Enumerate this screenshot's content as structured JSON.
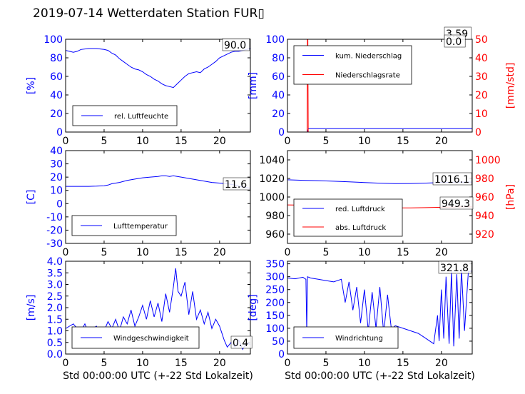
{
  "page": {
    "title": "2019-07-14 Wetterdaten Station FUR▯"
  },
  "chart_data": [
    {
      "id": "humidity",
      "type": "line",
      "xlabel": "",
      "ylabel": "[%]",
      "xlim": [
        0,
        24
      ],
      "ylim": [
        0,
        100
      ],
      "xticks": [
        0,
        5,
        10,
        15,
        20
      ],
      "yticks": [
        0,
        20,
        40,
        60,
        80,
        100
      ],
      "last_value_label": "90.0",
      "legend": [
        "rel. Luftfeuchte"
      ],
      "series": [
        {
          "name": "rel. Luftfeuchte",
          "color": "#0000ff",
          "x": [
            0,
            0.5,
            1,
            1.5,
            2,
            3,
            4,
            5,
            5.5,
            6,
            6.5,
            7,
            7.5,
            8,
            8.5,
            9,
            9.5,
            10,
            10.5,
            11,
            11.5,
            12,
            12.5,
            13,
            13.5,
            14,
            14.5,
            15,
            15.5,
            16,
            16.5,
            17,
            17.5,
            18,
            18.5,
            19,
            19.5,
            20,
            20.5,
            21,
            21.5,
            22,
            22.5,
            23,
            23.5,
            24
          ],
          "y": [
            88,
            87,
            86,
            87,
            89,
            90,
            90,
            89,
            88,
            85,
            83,
            79,
            76,
            73,
            70,
            68,
            67,
            65,
            62,
            60,
            57,
            55,
            52,
            50,
            49,
            48,
            52,
            56,
            60,
            63,
            64,
            65,
            64,
            68,
            70,
            73,
            76,
            80,
            82,
            84,
            86,
            87,
            87,
            88,
            89,
            90
          ]
        }
      ]
    },
    {
      "id": "precipitation",
      "type": "line",
      "xlabel": "",
      "ylabel": "[mm]",
      "ylabel_right": "[mm/std]",
      "xlim": [
        0,
        24
      ],
      "ylim": [
        0,
        100
      ],
      "ylim_right": [
        0,
        50
      ],
      "xticks": [
        0,
        5,
        10,
        15,
        20
      ],
      "yticks": [
        0,
        20,
        40,
        60,
        80,
        100
      ],
      "yticks_right": [
        0,
        10,
        20,
        30,
        40,
        50
      ],
      "last_value_labels": [
        "3.59",
        "0.0"
      ],
      "legend": [
        "kum. Niederschlag",
        "Niederschlagsrate"
      ],
      "series": [
        {
          "name": "kum. Niederschlag",
          "color": "#0000ff",
          "axis": "left",
          "x": [
            0,
            2.6,
            2.7,
            2.8,
            24
          ],
          "y": [
            0,
            0,
            3.4,
            3.59,
            3.59
          ]
        },
        {
          "name": "Niederschlagsrate",
          "color": "#ff0000",
          "axis": "right",
          "x": [
            0,
            2.55,
            2.6,
            2.65,
            2.7,
            24
          ],
          "y": [
            0,
            0,
            60,
            50,
            0,
            0
          ]
        }
      ]
    },
    {
      "id": "temperature",
      "type": "line",
      "xlabel": "",
      "ylabel": "[C]",
      "xlim": [
        0,
        24
      ],
      "ylim": [
        -30,
        40
      ],
      "xticks": [
        0,
        5,
        10,
        15,
        20
      ],
      "yticks": [
        -30,
        -20,
        -10,
        0,
        10,
        20,
        30,
        40
      ],
      "last_value_label": "11.6",
      "legend": [
        "Lufttemperatur"
      ],
      "series": [
        {
          "name": "Lufttemperatur",
          "color": "#0000ff",
          "x": [
            0,
            1,
            2,
            3,
            4,
            5,
            5.5,
            6,
            7,
            8,
            9,
            10,
            11,
            12,
            12.5,
            13,
            13.5,
            14,
            14.5,
            15,
            16,
            17,
            18,
            19,
            20,
            21,
            22,
            23,
            24
          ],
          "y": [
            13,
            13,
            13,
            13,
            13.2,
            13.5,
            14,
            15,
            16,
            17.5,
            18.5,
            19.5,
            20,
            20.5,
            21,
            21,
            20.5,
            21,
            20.5,
            20,
            19,
            18,
            17,
            16,
            15.5,
            15,
            14,
            12.5,
            11.6
          ]
        }
      ]
    },
    {
      "id": "pressure",
      "type": "line",
      "xlabel": "",
      "ylabel": "",
      "ylabel_right": "[hPa]",
      "xlim": [
        0,
        24
      ],
      "ylim": [
        950,
        1050
      ],
      "ylim_right": [
        910,
        1010
      ],
      "xticks": [
        0,
        5,
        10,
        15,
        20
      ],
      "yticks": [
        960,
        980,
        1000,
        1020,
        1040
      ],
      "yticks_right": [
        920,
        940,
        960,
        980,
        1000
      ],
      "last_value_labels": [
        "1016.1",
        "949.3"
      ],
      "legend": [
        "red. Luftdruck",
        "abs. Luftdruck"
      ],
      "series": [
        {
          "name": "red. Luftdruck",
          "color": "#0000ff",
          "axis": "left",
          "x": [
            0,
            2,
            4,
            6,
            8,
            10,
            12,
            14,
            16,
            18,
            20,
            22,
            24
          ],
          "y": [
            1018.5,
            1018,
            1017.6,
            1017,
            1016.4,
            1015.6,
            1014.9,
            1014.4,
            1014.5,
            1015,
            1015.6,
            1015.9,
            1016.1
          ]
        },
        {
          "name": "abs. Luftdruck",
          "color": "#ff0000",
          "axis": "right",
          "x": [
            0,
            2,
            4,
            6,
            8,
            10,
            12,
            14,
            16,
            18,
            20,
            22,
            24
          ],
          "y": [
            951.5,
            951.2,
            951,
            950.6,
            950.1,
            949.3,
            948.8,
            948.3,
            948.2,
            948.5,
            948.9,
            949.2,
            949.3
          ]
        }
      ]
    },
    {
      "id": "wind_speed",
      "type": "line",
      "xlabel": "Std 00:00:00 UTC (+-22 Std Lokalzeit)",
      "ylabel": "[m/s]",
      "xlim": [
        0,
        24
      ],
      "ylim": [
        0,
        4
      ],
      "xticks": [
        0,
        5,
        10,
        15,
        20
      ],
      "yticks": [
        0.0,
        0.5,
        1.0,
        1.5,
        2.0,
        2.5,
        3.0,
        3.5,
        4.0
      ],
      "last_value_label": "0.4",
      "legend": [
        "Windgeschwindigkeit"
      ],
      "series": [
        {
          "name": "Windgeschwindigkeit",
          "color": "#0000ff",
          "x": [
            0,
            0.5,
            1,
            1.5,
            2,
            2.5,
            3,
            3.5,
            4,
            4.5,
            5,
            5.5,
            6,
            6.5,
            7,
            7.5,
            8,
            8.5,
            9,
            9.5,
            10,
            10.5,
            11,
            11.5,
            12,
            12.5,
            13,
            13.5,
            14,
            14.3,
            14.6,
            15,
            15.5,
            16,
            16.5,
            17,
            17.5,
            18,
            18.5,
            19,
            19.5,
            20,
            20.3,
            20.6,
            21,
            21.5,
            22,
            22.5,
            23,
            23.5,
            24
          ],
          "y": [
            1.1,
            1.2,
            1.3,
            1.1,
            1.0,
            1.3,
            0.9,
            1.1,
            1.2,
            0.9,
            1.0,
            1.4,
            1.1,
            1.5,
            1.0,
            1.6,
            1.3,
            1.9,
            1.2,
            1.6,
            2.1,
            1.5,
            2.3,
            1.6,
            2.2,
            1.4,
            2.6,
            1.8,
            2.9,
            3.7,
            2.7,
            2.5,
            3.1,
            1.7,
            2.7,
            1.5,
            1.9,
            1.3,
            1.8,
            1.1,
            1.5,
            1.2,
            0.9,
            0.6,
            0.3,
            0.5,
            0.3,
            0.6,
            0.2,
            0.5,
            0.4
          ]
        }
      ]
    },
    {
      "id": "wind_direction",
      "type": "line",
      "xlabel": "Std 00:00:00 UTC (+-22 Std Lokalzeit)",
      "ylabel": "[deg]",
      "xlim": [
        0,
        24
      ],
      "ylim": [
        0,
        360
      ],
      "xticks": [
        0,
        5,
        10,
        15,
        20
      ],
      "yticks": [
        0,
        50,
        100,
        150,
        200,
        250,
        300,
        350
      ],
      "last_value_label": "321.8",
      "legend": [
        "Windrichtung"
      ],
      "series": [
        {
          "name": "Windrichtung",
          "color": "#0000ff",
          "x": [
            0,
            1,
            2,
            2.4,
            2.5,
            2.6,
            3,
            4,
            5,
            6,
            7,
            7.5,
            8,
            8.5,
            9,
            9.5,
            10,
            10.5,
            11,
            11.5,
            12,
            12.5,
            13,
            13.5,
            14,
            15,
            16,
            17,
            18,
            19,
            19.5,
            19.7,
            20,
            20.3,
            20.6,
            21,
            21.3,
            21.6,
            22,
            22.3,
            22.6,
            23,
            23.5,
            24
          ],
          "y": [
            295,
            292,
            298,
            290,
            90,
            300,
            295,
            290,
            285,
            280,
            290,
            200,
            280,
            170,
            260,
            120,
            250,
            90,
            240,
            100,
            260,
            80,
            230,
            95,
            110,
            100,
            90,
            80,
            60,
            40,
            150,
            50,
            250,
            60,
            300,
            40,
            320,
            30,
            310,
            60,
            330,
            90,
            320,
            321.8
          ]
        }
      ]
    }
  ]
}
